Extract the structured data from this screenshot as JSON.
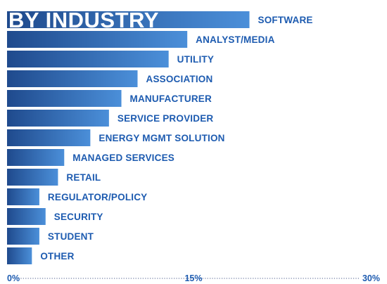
{
  "chart_data": {
    "type": "bar",
    "orientation": "horizontal",
    "title": "BY INDUSTRY",
    "categories": [
      "SOFTWARE",
      "ANALYST/MEDIA",
      "UTILITY",
      "ASSOCIATION",
      "MANUFACTURER",
      "SERVICE PROVIDER",
      "ENERGY MGMT SOLUTION",
      "MANAGED SERVICES",
      "RETAIL",
      "REGULATOR/POLICY",
      "SECURITY",
      "STUDENT",
      "OTHER"
    ],
    "values": [
      19.5,
      14.5,
      13.0,
      10.5,
      9.2,
      8.2,
      6.7,
      4.6,
      4.1,
      2.6,
      3.1,
      2.6,
      2.0
    ],
    "x_ticks": [
      "0%",
      "15%",
      "30%"
    ],
    "xlim": [
      0,
      30
    ],
    "grid": false,
    "legend": "none",
    "xlabel": "",
    "ylabel": "",
    "colors": {
      "bar_start": "#1f4a8d",
      "bar_end": "#4b8fd9",
      "label": "#1d5bb0",
      "title": "#ffffff",
      "axis": "#6f7ea3"
    }
  }
}
